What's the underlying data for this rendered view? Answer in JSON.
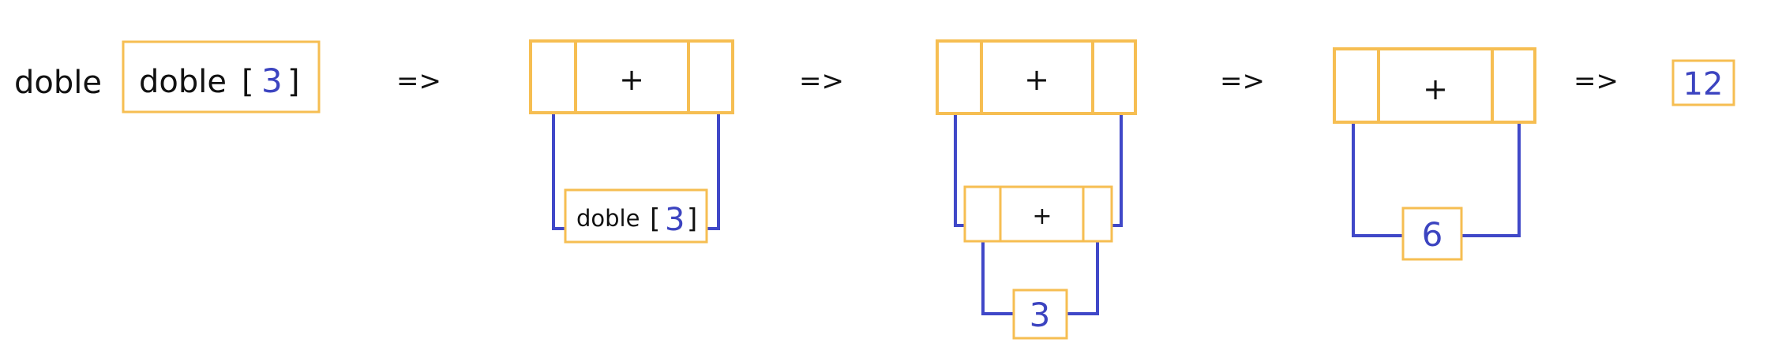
{
  "colors": {
    "box_stroke": "#F6BE52",
    "wire": "#4048C8",
    "text": "#111111",
    "number": "#3C44C0",
    "background": "#FFFFFF"
  },
  "stage0": {
    "label": "doble",
    "func": "doble",
    "open_bracket": "[",
    "arg": "3",
    "close_bracket": "]"
  },
  "arrows": [
    "=>",
    "=>",
    "=>",
    "=>"
  ],
  "stage1": {
    "op": "+",
    "child_func": "doble",
    "child_open": "[",
    "child_arg": "3",
    "child_close": "]"
  },
  "stage2": {
    "op": "+",
    "inner_op": "+",
    "leaf": "3"
  },
  "stage3": {
    "op": "+",
    "leaf": "6"
  },
  "result": "12"
}
